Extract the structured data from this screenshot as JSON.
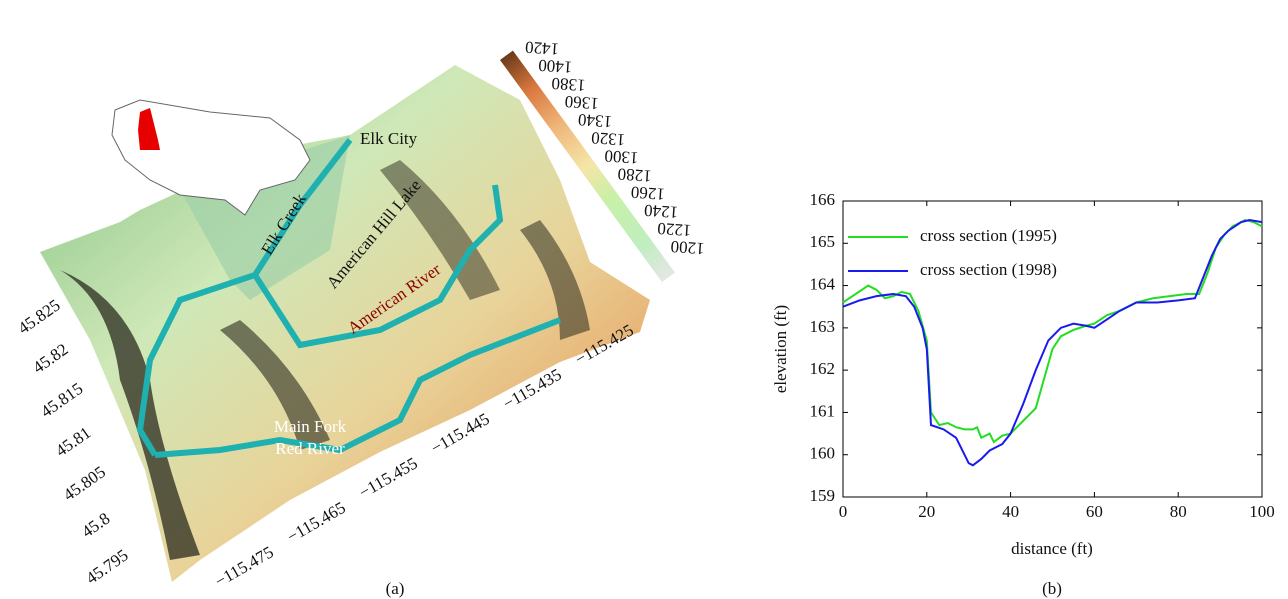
{
  "panel_a": {
    "caption": "(a)",
    "labels": [
      "Elk City",
      "Elk Creek",
      "American Hill Lake",
      "American River",
      "Main Fork",
      "Red River"
    ],
    "colorbar_ticks": [
      1200,
      1220,
      1240,
      1260,
      1280,
      1300,
      1320,
      1340,
      1360,
      1380,
      1400,
      1420
    ],
    "lat_ticks": [
      45.825,
      45.82,
      45.815,
      45.81,
      45.805,
      45.8,
      45.795
    ],
    "lon_ticks": [
      {
        "value": -115.475,
        "label": "−115.475"
      },
      {
        "value": -115.465,
        "label": "−115.465"
      },
      {
        "value": -115.455,
        "label": "−115.455"
      },
      {
        "value": -115.445,
        "label": "−115.445"
      },
      {
        "value": -115.435,
        "label": "−115.435"
      },
      {
        "value": -115.425,
        "label": "−115.425"
      }
    ]
  },
  "chart_data": {
    "type": "line",
    "caption": "(b)",
    "xlabel": "distance (ft)",
    "ylabel": "elevation (ft)",
    "xlim": [
      0,
      100
    ],
    "xticks": [
      0,
      20,
      40,
      60,
      80,
      100
    ],
    "ylim": [
      159,
      166
    ],
    "yticks": [
      159,
      160,
      161,
      162,
      163,
      164,
      165,
      166
    ],
    "series": [
      {
        "name": "cross section (1995)",
        "color": "#22dd22",
        "x": [
          0,
          3,
          6,
          8,
          10,
          12,
          14,
          16,
          18,
          20,
          21,
          23,
          25,
          27,
          29,
          31,
          32,
          33,
          35,
          36,
          38,
          40,
          43,
          46,
          48,
          50,
          52,
          55,
          58,
          60,
          63,
          66,
          70,
          74,
          78,
          82,
          85,
          87,
          89,
          91,
          93,
          96,
          98,
          100
        ],
        "values": [
          163.6,
          163.8,
          164.0,
          163.9,
          163.7,
          163.75,
          163.85,
          163.8,
          163.4,
          162.7,
          161.0,
          160.7,
          160.75,
          160.65,
          160.6,
          160.6,
          160.65,
          160.4,
          160.5,
          160.3,
          160.45,
          160.5,
          160.8,
          161.1,
          161.8,
          162.5,
          162.8,
          162.95,
          163.05,
          163.1,
          163.3,
          163.4,
          163.6,
          163.7,
          163.75,
          163.8,
          163.8,
          164.3,
          164.9,
          165.2,
          165.4,
          165.55,
          165.5,
          165.4
        ]
      },
      {
        "name": "cross section (1998)",
        "color": "#1a1aee",
        "x": [
          0,
          4,
          8,
          12,
          15,
          17,
          19,
          20,
          21,
          24,
          27,
          29,
          30,
          31,
          33,
          35,
          38,
          40,
          43,
          46,
          49,
          52,
          55,
          58,
          60,
          63,
          66,
          70,
          75,
          80,
          84,
          86,
          88,
          90,
          92,
          95,
          97,
          100
        ],
        "values": [
          163.5,
          163.65,
          163.75,
          163.8,
          163.75,
          163.5,
          163.0,
          162.5,
          160.7,
          160.6,
          160.4,
          160.0,
          159.8,
          159.75,
          159.9,
          160.1,
          160.25,
          160.5,
          161.2,
          162.0,
          162.7,
          163.0,
          163.1,
          163.05,
          163.0,
          163.2,
          163.4,
          163.6,
          163.6,
          163.65,
          163.7,
          164.2,
          164.7,
          165.1,
          165.3,
          165.5,
          165.55,
          165.5
        ]
      }
    ]
  }
}
